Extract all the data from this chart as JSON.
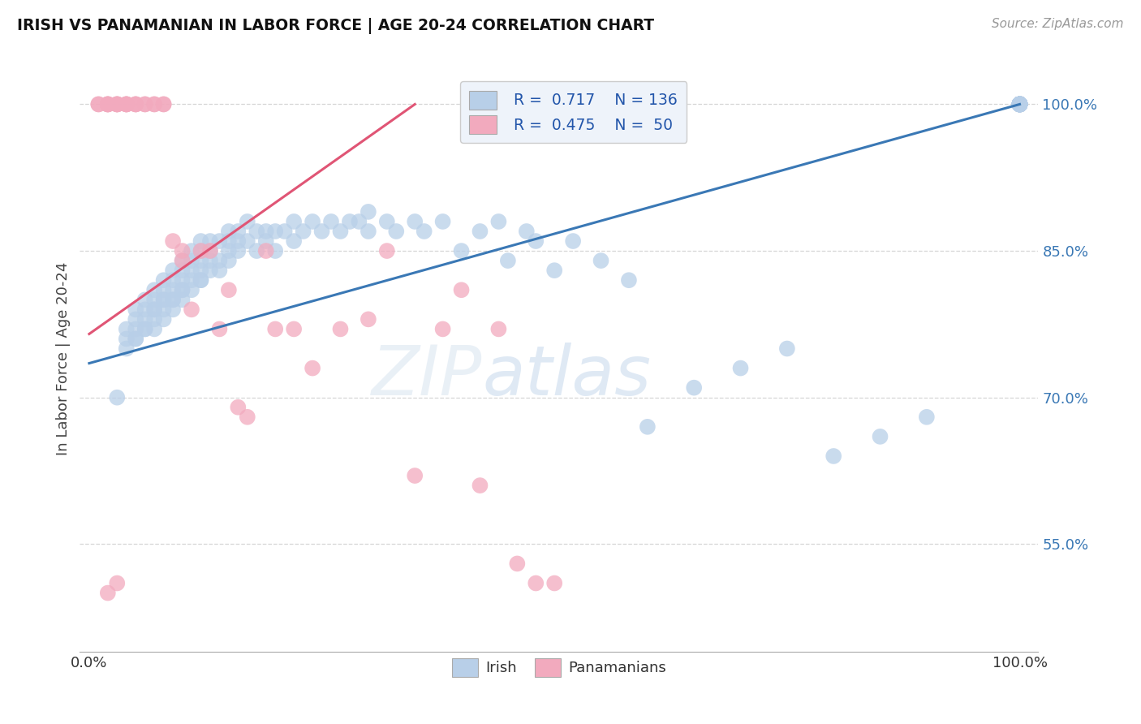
{
  "title": "IRISH VS PANAMANIAN IN LABOR FORCE | AGE 20-24 CORRELATION CHART",
  "source": "Source: ZipAtlas.com",
  "ylabel": "In Labor Force | Age 20-24",
  "xlim": [
    -0.01,
    1.02
  ],
  "ylim": [
    0.44,
    1.04
  ],
  "irish_R": 0.717,
  "irish_N": 136,
  "panam_R": 0.475,
  "panam_N": 50,
  "irish_color": "#b8cfe8",
  "panam_color": "#f2aabe",
  "irish_line_color": "#3a78b5",
  "panam_line_color": "#e05575",
  "ytick_labels": [
    "55.0%",
    "70.0%",
    "85.0%",
    "100.0%"
  ],
  "ytick_values": [
    0.55,
    0.7,
    0.85,
    1.0
  ],
  "xtick_labels": [
    "0.0%",
    "100.0%"
  ],
  "xtick_values": [
    0.0,
    1.0
  ],
  "legend_box_color": "#eef3fa",
  "legend_text_color": "#2255aa",
  "watermark_zip": "ZIP",
  "watermark_atlas": "atlas",
  "irish_x": [
    0.03,
    0.04,
    0.04,
    0.04,
    0.05,
    0.05,
    0.05,
    0.05,
    0.05,
    0.06,
    0.06,
    0.06,
    0.06,
    0.06,
    0.07,
    0.07,
    0.07,
    0.07,
    0.07,
    0.07,
    0.08,
    0.08,
    0.08,
    0.08,
    0.08,
    0.08,
    0.09,
    0.09,
    0.09,
    0.09,
    0.09,
    0.09,
    0.1,
    0.1,
    0.1,
    0.1,
    0.1,
    0.1,
    0.11,
    0.11,
    0.11,
    0.11,
    0.11,
    0.12,
    0.12,
    0.12,
    0.12,
    0.12,
    0.12,
    0.13,
    0.13,
    0.13,
    0.13,
    0.14,
    0.14,
    0.14,
    0.15,
    0.15,
    0.15,
    0.15,
    0.16,
    0.16,
    0.16,
    0.17,
    0.17,
    0.18,
    0.18,
    0.19,
    0.19,
    0.2,
    0.2,
    0.21,
    0.22,
    0.22,
    0.23,
    0.24,
    0.25,
    0.26,
    0.27,
    0.28,
    0.29,
    0.3,
    0.3,
    0.32,
    0.33,
    0.35,
    0.36,
    0.38,
    0.4,
    0.42,
    0.44,
    0.45,
    0.47,
    0.48,
    0.5,
    0.52,
    0.55,
    0.58,
    0.6,
    0.65,
    0.7,
    0.75,
    0.8,
    0.85,
    0.9,
    1.0,
    1.0,
    1.0,
    1.0,
    1.0,
    1.0,
    1.0,
    1.0,
    1.0,
    1.0,
    1.0,
    1.0,
    1.0,
    1.0,
    1.0,
    1.0,
    1.0,
    1.0,
    1.0,
    1.0,
    1.0,
    1.0,
    1.0,
    1.0,
    1.0,
    1.0,
    1.0,
    1.0,
    1.0,
    1.0,
    1.0
  ],
  "irish_y": [
    0.7,
    0.76,
    0.77,
    0.75,
    0.76,
    0.78,
    0.77,
    0.79,
    0.76,
    0.77,
    0.79,
    0.78,
    0.8,
    0.77,
    0.79,
    0.8,
    0.78,
    0.81,
    0.79,
    0.77,
    0.79,
    0.81,
    0.8,
    0.78,
    0.82,
    0.8,
    0.8,
    0.82,
    0.81,
    0.79,
    0.83,
    0.8,
    0.81,
    0.83,
    0.82,
    0.8,
    0.84,
    0.81,
    0.82,
    0.84,
    0.83,
    0.81,
    0.85,
    0.82,
    0.84,
    0.83,
    0.85,
    0.82,
    0.86,
    0.83,
    0.85,
    0.84,
    0.86,
    0.84,
    0.86,
    0.83,
    0.85,
    0.87,
    0.84,
    0.86,
    0.85,
    0.87,
    0.86,
    0.86,
    0.88,
    0.87,
    0.85,
    0.87,
    0.86,
    0.87,
    0.85,
    0.87,
    0.86,
    0.88,
    0.87,
    0.88,
    0.87,
    0.88,
    0.87,
    0.88,
    0.88,
    0.87,
    0.89,
    0.88,
    0.87,
    0.88,
    0.87,
    0.88,
    0.85,
    0.87,
    0.88,
    0.84,
    0.87,
    0.86,
    0.83,
    0.86,
    0.84,
    0.82,
    0.67,
    0.71,
    0.73,
    0.75,
    0.64,
    0.66,
    0.68,
    1.0,
    1.0,
    1.0,
    1.0,
    1.0,
    1.0,
    1.0,
    1.0,
    1.0,
    1.0,
    1.0,
    1.0,
    1.0,
    1.0,
    1.0,
    1.0,
    1.0,
    1.0,
    1.0,
    1.0,
    1.0,
    1.0,
    1.0,
    1.0,
    1.0,
    1.0,
    1.0,
    1.0,
    1.0,
    1.0,
    1.0
  ],
  "panam_x": [
    0.01,
    0.01,
    0.02,
    0.02,
    0.02,
    0.02,
    0.03,
    0.03,
    0.03,
    0.03,
    0.04,
    0.04,
    0.04,
    0.04,
    0.05,
    0.05,
    0.05,
    0.06,
    0.06,
    0.07,
    0.07,
    0.08,
    0.08,
    0.09,
    0.1,
    0.1,
    0.11,
    0.12,
    0.13,
    0.14,
    0.15,
    0.16,
    0.17,
    0.19,
    0.2,
    0.22,
    0.24,
    0.27,
    0.3,
    0.32,
    0.35,
    0.38,
    0.4,
    0.42,
    0.44,
    0.46,
    0.48,
    0.5,
    0.02,
    0.03
  ],
  "panam_y": [
    1.0,
    1.0,
    1.0,
    1.0,
    1.0,
    1.0,
    1.0,
    1.0,
    1.0,
    1.0,
    1.0,
    1.0,
    1.0,
    1.0,
    1.0,
    1.0,
    1.0,
    1.0,
    1.0,
    1.0,
    1.0,
    1.0,
    1.0,
    0.86,
    0.85,
    0.84,
    0.79,
    0.85,
    0.85,
    0.77,
    0.81,
    0.69,
    0.68,
    0.85,
    0.77,
    0.77,
    0.73,
    0.77,
    0.78,
    0.85,
    0.62,
    0.77,
    0.81,
    0.61,
    0.77,
    0.53,
    0.51,
    0.51,
    0.5,
    0.51
  ],
  "irish_trend_x": [
    0.0,
    1.0
  ],
  "irish_trend_y": [
    0.735,
    1.0
  ],
  "panam_trend_x": [
    0.0,
    0.35
  ],
  "panam_trend_y": [
    0.765,
    1.0
  ]
}
